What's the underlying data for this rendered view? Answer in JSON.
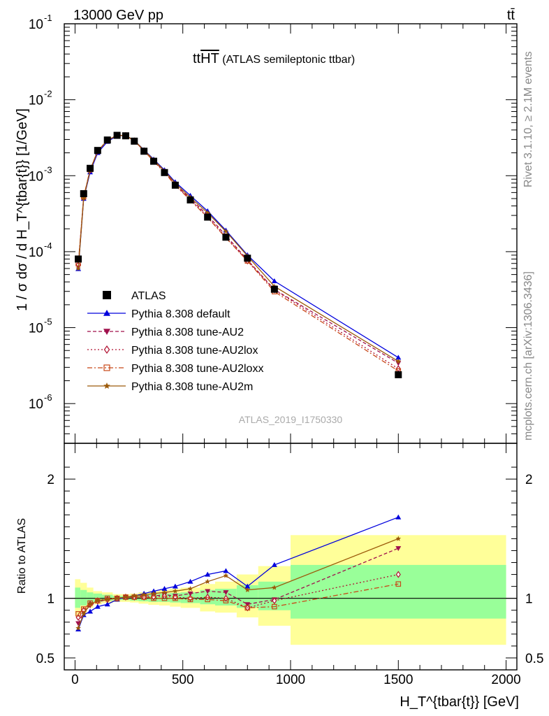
{
  "header": {
    "left": "13000 GeV pp",
    "right": "tt̄"
  },
  "side_labels": {
    "rivet": "Rivet 3.1.10, ≥ 2.1M events",
    "mcplots": "mcplots.cern.ch [arXiv:1306.3436]"
  },
  "chart_data": {
    "type": "line",
    "title_main": "tt",
    "title_over": "HT",
    "title_rest": " (ATLAS semileptonic ttbar)",
    "watermark": "ATLAS_2019_I1750330",
    "main_ylabel": "1 / σ dσ / d H_T^{tbar{t}} [1/GeV]",
    "ratio_ylabel": "Ratio to ATLAS",
    "xlabel": "H_T^{tbar{t}} [GeV]",
    "xlim": [
      -50,
      2050
    ],
    "main_ylim": [
      3e-07,
      0.1
    ],
    "main_yscale": "log",
    "main_yticks": [
      {
        "exp": "-6",
        "value": 1e-06
      },
      {
        "exp": "-5",
        "value": 1e-05
      },
      {
        "exp": "-4",
        "value": 0.0001
      },
      {
        "exp": "-3",
        "value": 0.001
      },
      {
        "exp": "-2",
        "value": 0.01
      },
      {
        "exp": "-1",
        "value": 0.1
      }
    ],
    "ratio_ylim": [
      0.4,
      2.3
    ],
    "ratio_yticks": [
      "0.5",
      "1",
      "2"
    ],
    "xticks": [
      "0",
      "500",
      "1000",
      "1500",
      "2000"
    ],
    "x": [
      15,
      40,
      70,
      105,
      150,
      195,
      235,
      275,
      320,
      365,
      415,
      465,
      535,
      615,
      700,
      800,
      925,
      1500
    ],
    "data": {
      "name": "ATLAS",
      "y": [
        8e-05,
        0.00058,
        0.00125,
        0.00215,
        0.00295,
        0.0034,
        0.00335,
        0.00285,
        0.0021,
        0.00155,
        0.0011,
        0.00075,
        0.00048,
        0.000285,
        0.000155,
        8.2e-05,
        3.2e-05,
        2.4e-06
      ]
    },
    "bands": [
      {
        "x0": 0,
        "x1": 25,
        "green": [
          0.92,
          1.09
        ],
        "yellow": [
          0.85,
          1.16
        ]
      },
      {
        "x0": 25,
        "x1": 55,
        "green": [
          0.94,
          1.07
        ],
        "yellow": [
          0.88,
          1.13
        ]
      },
      {
        "x0": 55,
        "x1": 85,
        "green": [
          0.96,
          1.05
        ],
        "yellow": [
          0.92,
          1.09
        ]
      },
      {
        "x0": 85,
        "x1": 125,
        "green": [
          0.97,
          1.04
        ],
        "yellow": [
          0.95,
          1.06
        ]
      },
      {
        "x0": 125,
        "x1": 175,
        "green": [
          0.98,
          1.03
        ],
        "yellow": [
          0.96,
          1.05
        ]
      },
      {
        "x0": 175,
        "x1": 215,
        "green": [
          0.985,
          1.02
        ],
        "yellow": [
          0.97,
          1.035
        ]
      },
      {
        "x0": 215,
        "x1": 255,
        "green": [
          0.985,
          1.02
        ],
        "yellow": [
          0.97,
          1.035
        ]
      },
      {
        "x0": 255,
        "x1": 295,
        "green": [
          0.98,
          1.025
        ],
        "yellow": [
          0.965,
          1.04
        ]
      },
      {
        "x0": 295,
        "x1": 340,
        "green": [
          0.975,
          1.03
        ],
        "yellow": [
          0.955,
          1.05
        ]
      },
      {
        "x0": 340,
        "x1": 390,
        "green": [
          0.97,
          1.035
        ],
        "yellow": [
          0.945,
          1.06
        ]
      },
      {
        "x0": 390,
        "x1": 440,
        "green": [
          0.97,
          1.04
        ],
        "yellow": [
          0.94,
          1.07
        ]
      },
      {
        "x0": 440,
        "x1": 490,
        "green": [
          0.965,
          1.045
        ],
        "yellow": [
          0.93,
          1.08
        ]
      },
      {
        "x0": 490,
        "x1": 580,
        "green": [
          0.96,
          1.05
        ],
        "yellow": [
          0.92,
          1.09
        ]
      },
      {
        "x0": 580,
        "x1": 650,
        "green": [
          0.95,
          1.07
        ],
        "yellow": [
          0.89,
          1.12
        ]
      },
      {
        "x0": 650,
        "x1": 750,
        "green": [
          0.94,
          1.08
        ],
        "yellow": [
          0.88,
          1.14
        ]
      },
      {
        "x0": 750,
        "x1": 850,
        "green": [
          0.92,
          1.11
        ],
        "yellow": [
          0.84,
          1.2
        ]
      },
      {
        "x0": 850,
        "x1": 1000,
        "green": [
          0.9,
          1.14
        ],
        "yellow": [
          0.77,
          1.27
        ]
      },
      {
        "x0": 1000,
        "x1": 2000,
        "green": [
          0.83,
          1.28
        ],
        "yellow": [
          0.61,
          1.53
        ]
      }
    ],
    "series": [
      {
        "name": "Pythia 8.308 default",
        "color": "#0000dd",
        "dash": "",
        "marker": "triangle-up",
        "ratio": [
          0.74,
          0.86,
          0.89,
          0.93,
          0.95,
          0.99,
          1.01,
          1.02,
          1.04,
          1.06,
          1.08,
          1.1,
          1.14,
          1.2,
          1.23,
          1.1,
          1.28,
          1.68
        ]
      },
      {
        "name": "Pythia 8.308 tune-AU2",
        "color": "#a0104c",
        "dash": "5,3",
        "marker": "triangle-down",
        "ratio": [
          0.79,
          0.88,
          0.94,
          0.97,
          0.99,
          1.0,
          1.01,
          1.01,
          1.02,
          1.02,
          1.03,
          1.02,
          1.04,
          1.06,
          1.05,
          0.95,
          0.99,
          1.42
        ]
      },
      {
        "name": "Pythia 8.308 tune-AU2lox",
        "color": "#b01030",
        "dash": "2,3",
        "marker": "diamond-open",
        "ratio": [
          0.84,
          0.9,
          0.95,
          0.98,
          0.99,
          1.0,
          1.01,
          1.01,
          1.01,
          1.01,
          1.02,
          1.01,
          1.0,
          1.01,
          1.0,
          0.92,
          0.98,
          1.2
        ]
      },
      {
        "name": "Pythia 8.308 tune-AU2loxx",
        "color": "#c84818",
        "dash": "7,3,2,3",
        "marker": "square-open",
        "ratio": [
          0.87,
          0.91,
          0.96,
          0.98,
          1.0,
          1.0,
          1.01,
          1.01,
          1.01,
          1.0,
          1.0,
          1.0,
          0.99,
          0.99,
          0.98,
          0.92,
          0.93,
          1.12
        ]
      },
      {
        "name": "Pythia 8.308 tune-AU2m",
        "color": "#9c5a0a",
        "dash": "",
        "marker": "star",
        "ratio": [
          0.75,
          0.87,
          0.95,
          0.98,
          0.99,
          1.0,
          1.01,
          1.02,
          1.03,
          1.04,
          1.05,
          1.06,
          1.08,
          1.14,
          1.19,
          1.07,
          1.09,
          1.5
        ]
      }
    ]
  }
}
